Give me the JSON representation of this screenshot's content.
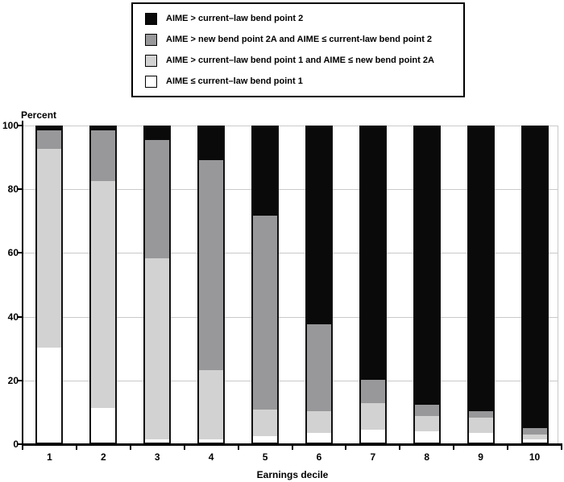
{
  "figure": {
    "ylabel": "Percent",
    "xlabel": "Earnings decile"
  },
  "colors": {
    "black_segment": "#0a0a0a",
    "dark_gray_segment": "#98989a",
    "light_gray_segment": "#d2d2d2",
    "white_segment": "#ffffff",
    "bar_border": "#111111",
    "gridline": "#c9c9c9",
    "axis": "#000000"
  },
  "legend": {
    "items": [
      {
        "label": "AIME > current–law bend point 2",
        "color": "#0a0a0a"
      },
      {
        "label": "AIME > new bend point 2A and AIME ≤ current-law bend point 2",
        "color": "#98989a"
      },
      {
        "label": "AIME > current–law bend point 1 and AIME ≤ new bend point 2A",
        "color": "#d2d2d2"
      },
      {
        "label": "AIME ≤ current–law bend point 1",
        "color": "#ffffff"
      }
    ]
  },
  "chart_data": {
    "type": "bar",
    "stacked": true,
    "title": "",
    "xlabel": "Earnings decile",
    "ylabel": "Percent",
    "categories": [
      "1",
      "2",
      "3",
      "4",
      "5",
      "6",
      "7",
      "8",
      "9",
      "10"
    ],
    "series": [
      {
        "name": "AIME ≤ current–law bend point 1",
        "color": "#ffffff",
        "values": [
          30,
          11,
          1,
          1,
          2,
          3,
          4,
          3.5,
          3,
          1
        ]
      },
      {
        "name": "AIME > current–law bend point 1 and AIME ≤ new bend point 2A",
        "color": "#d2d2d2",
        "values": [
          63,
          72,
          57.5,
          22,
          8.5,
          7,
          8.5,
          5,
          5,
          1.5
        ]
      },
      {
        "name": "AIME > new bend point 2A and AIME ≤ current-law bend point 2",
        "color": "#98989a",
        "values": [
          6,
          16,
          37.5,
          66.5,
          61.5,
          27.5,
          7.5,
          3.5,
          2,
          2
        ]
      },
      {
        "name": "AIME > current–law bend point 2",
        "color": "#0a0a0a",
        "values": [
          1,
          1,
          4,
          10.5,
          28,
          62.5,
          80,
          88,
          90,
          95.5
        ]
      }
    ],
    "yticks": [
      0,
      20,
      40,
      60,
      80,
      100
    ],
    "ylim": [
      0,
      100
    ],
    "grid": true,
    "legend_position": "top"
  }
}
